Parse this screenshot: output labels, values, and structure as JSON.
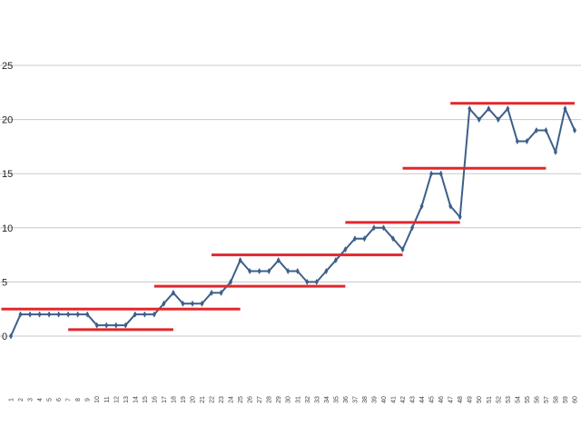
{
  "chart_data": {
    "type": "line",
    "title": "",
    "xlabel": "",
    "ylabel": "",
    "ylim": [
      -5,
      25
    ],
    "y_tick_labels": [
      "25",
      "20",
      "15",
      "10",
      "5",
      "0"
    ],
    "y_ticks": [
      25,
      20,
      15,
      10,
      5,
      0
    ],
    "grid": true,
    "x": [
      1,
      2,
      3,
      4,
      5,
      6,
      7,
      8,
      9,
      10,
      11,
      12,
      13,
      14,
      15,
      16,
      17,
      18,
      19,
      20,
      21,
      22,
      23,
      24,
      25,
      26,
      27,
      28,
      29,
      30,
      31,
      32,
      33,
      34,
      35,
      36,
      37,
      38,
      39,
      40,
      41,
      42,
      43,
      44,
      45,
      46,
      47,
      48,
      49,
      50,
      51,
      52,
      53,
      54,
      55,
      56,
      57,
      58,
      59,
      60
    ],
    "x_tick_labels": [
      "1",
      "2",
      "3",
      "4",
      "5",
      "6",
      "7",
      "8",
      "9",
      "10",
      "11",
      "12",
      "13",
      "14",
      "15",
      "16",
      "17",
      "18",
      "19",
      "20",
      "21",
      "22",
      "23",
      "24",
      "25",
      "26",
      "27",
      "28",
      "29",
      "30",
      "31",
      "32",
      "33",
      "34",
      "35",
      "36",
      "37",
      "38",
      "39",
      "40",
      "41",
      "42",
      "43",
      "44",
      "45",
      "46",
      "47",
      "48",
      "49",
      "50",
      "51",
      "52",
      "53",
      "54",
      "55",
      "56",
      "57",
      "58",
      "59",
      "60"
    ],
    "series": [
      {
        "values": [
          0,
          2,
          2,
          2,
          2,
          2,
          2,
          2,
          2,
          1,
          1,
          1,
          1,
          2,
          2,
          2,
          3,
          4,
          3,
          3,
          3,
          4,
          4,
          5,
          7,
          6,
          6,
          6,
          7,
          6,
          6,
          5,
          5,
          6,
          7,
          8,
          9,
          9,
          10,
          10,
          9,
          8,
          10,
          12,
          15,
          15,
          12,
          11,
          21,
          20,
          21,
          20,
          21,
          18,
          18,
          19,
          19,
          17,
          21,
          19
        ]
      }
    ],
    "reference_segments": [
      {
        "x_start": 1,
        "x_end": 25,
        "y": 2.5
      },
      {
        "x_start": 8,
        "x_end": 18,
        "y": 0.6
      },
      {
        "x_start": 17,
        "x_end": 36,
        "y": 4.6
      },
      {
        "x_start": 23,
        "x_end": 42,
        "y": 7.5
      },
      {
        "x_start": 37,
        "x_end": 48,
        "y": 10.5
      },
      {
        "x_start": 43,
        "x_end": 57,
        "y": 15.5
      },
      {
        "x_start": 48,
        "x_end": 60,
        "y": 21.5
      }
    ],
    "colors": {
      "line": "#3d5f8a",
      "marker": "#3d5f8a",
      "reference": "#e0282e",
      "grid": "#c8c8c8"
    }
  }
}
